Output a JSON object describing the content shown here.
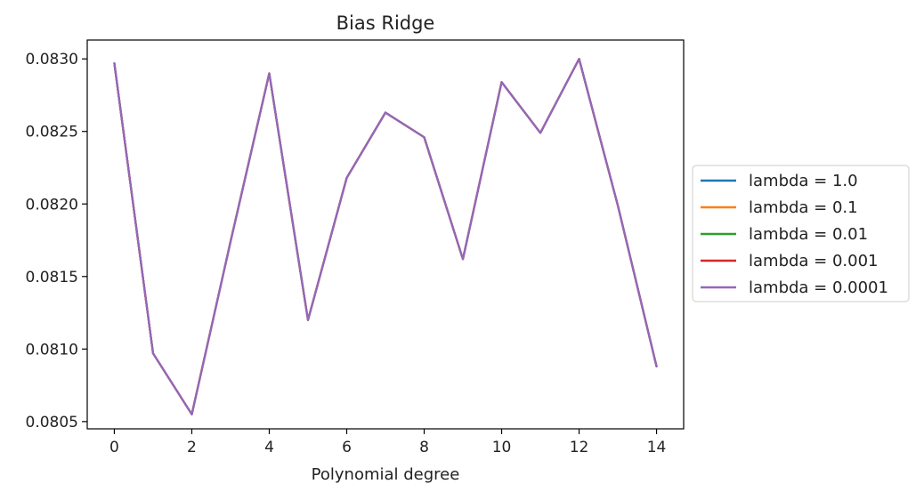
{
  "chart_data": {
    "type": "line",
    "title": "Bias Ridge",
    "xlabel": "Polynomial degree",
    "ylabel": "",
    "x": [
      0,
      1,
      2,
      3,
      4,
      5,
      6,
      7,
      8,
      9,
      10,
      11,
      12,
      13,
      14
    ],
    "xlim": [
      -0.7,
      14.7
    ],
    "ylim": [
      0.08045,
      0.08313
    ],
    "xticks": [
      0,
      2,
      4,
      6,
      8,
      10,
      12,
      14
    ],
    "xtick_labels": [
      "0",
      "2",
      "4",
      "6",
      "8",
      "10",
      "12",
      "14"
    ],
    "yticks": [
      0.0805,
      0.081,
      0.0815,
      0.082,
      0.0825,
      0.083
    ],
    "ytick_labels": [
      "0.0805",
      "0.0810",
      "0.0815",
      "0.0820",
      "0.0825",
      "0.0830"
    ],
    "grid": false,
    "legend_position": "center-right-outside",
    "series": [
      {
        "name": "lambda = 1.0",
        "color": "#1f77b4",
        "values": [
          0.08297,
          0.08097,
          0.08055,
          0.08174,
          0.0829,
          0.0812,
          0.08218,
          0.08263,
          0.08246,
          0.08162,
          0.08284,
          0.08249,
          0.083,
          0.08199,
          0.08088
        ]
      },
      {
        "name": "lambda = 0.1",
        "color": "#ff7f0e",
        "values": [
          0.08297,
          0.08097,
          0.08055,
          0.08174,
          0.0829,
          0.0812,
          0.08218,
          0.08263,
          0.08246,
          0.08162,
          0.08284,
          0.08249,
          0.083,
          0.08199,
          0.08088
        ]
      },
      {
        "name": "lambda = 0.01",
        "color": "#2ca02c",
        "values": [
          0.08297,
          0.08097,
          0.08055,
          0.08174,
          0.0829,
          0.0812,
          0.08218,
          0.08263,
          0.08246,
          0.08162,
          0.08284,
          0.08249,
          0.083,
          0.08199,
          0.08088
        ]
      },
      {
        "name": "lambda = 0.001",
        "color": "#d62728",
        "values": [
          0.08297,
          0.08097,
          0.08055,
          0.08174,
          0.0829,
          0.0812,
          0.08218,
          0.08263,
          0.08246,
          0.08162,
          0.08284,
          0.08249,
          0.083,
          0.08199,
          0.08088
        ]
      },
      {
        "name": "lambda = 0.0001",
        "color": "#9467bd",
        "values": [
          0.08297,
          0.08097,
          0.08055,
          0.08174,
          0.0829,
          0.0812,
          0.08218,
          0.08263,
          0.08246,
          0.08162,
          0.08284,
          0.08249,
          0.083,
          0.08199,
          0.08088
        ]
      }
    ]
  }
}
